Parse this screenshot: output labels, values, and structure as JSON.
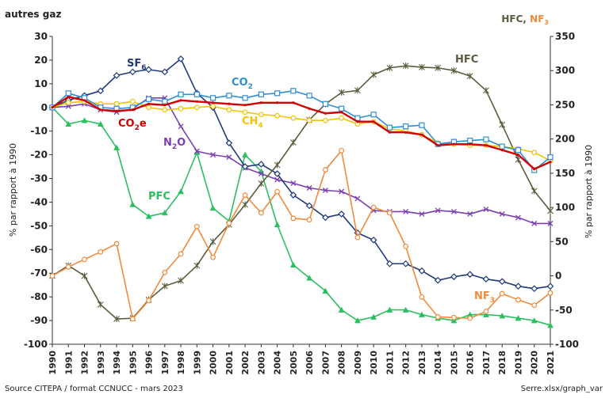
{
  "chart_data": {
    "type": "line",
    "title_left": "autres gaz",
    "title_right_hfc": "HFC, ",
    "title_right_nf3": "NF",
    "title_right_nf3_sub": "3",
    "ylabel_left": "% par rapport à 1990",
    "ylabel_right": "% par rapport à 1990",
    "ylim_left": [
      -100,
      30
    ],
    "ylim_right": [
      -100,
      350
    ],
    "yticks_left": [
      30,
      20,
      10,
      0,
      -10,
      -20,
      -30,
      -40,
      -50,
      -60,
      -70,
      -80,
      -90,
      -100
    ],
    "yticks_right": [
      350,
      300,
      250,
      200,
      150,
      100,
      50,
      0,
      -50,
      -100
    ],
    "grid": false,
    "x": [
      "1990",
      "1991",
      "1992",
      "1993",
      "1994",
      "1995",
      "1996",
      "1997",
      "1998",
      "1999",
      "2000",
      "2001",
      "2002",
      "2003",
      "2004",
      "2005",
      "2006",
      "2007",
      "2008",
      "2009",
      "2010",
      "2011",
      "2012",
      "2013",
      "2014",
      "2015",
      "2016",
      "2017",
      "2018",
      "2019",
      "2020",
      "2021"
    ],
    "series": [
      {
        "name": "SF6",
        "label": "SF",
        "label_sub": "6",
        "axis": "left",
        "color": "#1f3a7a",
        "marker": "diamond",
        "values": [
          0,
          3,
          5,
          7,
          13.5,
          15,
          16,
          15,
          20.5,
          6,
          0,
          -15,
          -25,
          -24,
          -28,
          -37,
          -41.5,
          -46.5,
          -45,
          -53,
          -56,
          -66,
          -66,
          -69,
          -73,
          -71.5,
          -70.5,
          -72.5,
          -73.5,
          -75.5,
          -76.5,
          -75.5
        ]
      },
      {
        "name": "CO2",
        "label": "CO",
        "label_sub": "2",
        "axis": "left",
        "color": "#2e8fd1",
        "marker": "square",
        "values": [
          0,
          6,
          4,
          0,
          -0.5,
          0,
          3.5,
          2.5,
          5.5,
          5.5,
          4,
          5,
          4,
          5.5,
          6,
          7,
          5,
          1.5,
          -0.5,
          -4.5,
          -3,
          -8.5,
          -8,
          -7.5,
          -15.5,
          -14.5,
          -14,
          -13.5,
          -16.5,
          -18,
          -26.5,
          -21
        ]
      },
      {
        "name": "CH4",
        "label": "CH",
        "label_sub": "4",
        "axis": "left",
        "color": "#f2c200",
        "marker": "circle",
        "values": [
          0,
          2,
          2.5,
          1.5,
          1.5,
          2.5,
          0,
          -1,
          -0.5,
          0,
          0.5,
          -1,
          -2,
          -3,
          -3.5,
          -4.5,
          -5.5,
          -5.5,
          -4.5,
          -7,
          -6,
          -9,
          -10,
          -11.5,
          -15,
          -15.5,
          -16,
          -16,
          -16.5,
          -17.5,
          -19,
          -22.5
        ]
      },
      {
        "name": "CO2e",
        "label": "CO",
        "label_sub": "2",
        "label_tail": "e",
        "axis": "left",
        "color": "#d10000",
        "marker": "line",
        "values": [
          0,
          4.5,
          3,
          -1,
          -1.5,
          -1,
          1.5,
          1,
          3,
          2.5,
          2,
          1.5,
          1,
          2,
          2,
          2,
          -0.5,
          -2.5,
          -2,
          -6,
          -6,
          -10.5,
          -10.5,
          -11.5,
          -16,
          -15.5,
          -15.5,
          -16,
          -18,
          -20,
          -26,
          -23
        ]
      },
      {
        "name": "N2O",
        "label": "N",
        "label_sub": "2",
        "label_tail": "O",
        "axis": "left",
        "color": "#7b3fb0",
        "marker": "x",
        "values": [
          0,
          0.5,
          1.5,
          -1,
          -2,
          -0.5,
          4,
          4,
          -8,
          -18.5,
          -20,
          -21,
          -25.5,
          -28,
          -30.5,
          -32,
          -34,
          -35,
          -35.5,
          -38.5,
          -43.5,
          -44,
          -44,
          -45,
          -43.5,
          -44,
          -45,
          -43,
          -45,
          -46.5,
          -49,
          -49
        ]
      },
      {
        "name": "PFC",
        "label": "PFC",
        "axis": "left",
        "color": "#2bbf60",
        "marker": "triangle",
        "values": [
          0,
          -7,
          -5.5,
          -7,
          -17,
          -41,
          -46,
          -44.5,
          -35.5,
          -19,
          -42.5,
          -48,
          -20,
          -27,
          -49.5,
          -66.5,
          -72,
          -77.5,
          -85.5,
          -90,
          -88.5,
          -85.5,
          -85.5,
          -87.5,
          -89,
          -90,
          -87.5,
          -87.5,
          -88,
          -89,
          -90,
          -92
        ]
      },
      {
        "name": "HFC",
        "label": "HFC",
        "axis": "right",
        "color": "#5c5c3d",
        "marker": "star",
        "values": [
          0,
          15,
          0,
          -42,
          -63,
          -62,
          -35,
          -15,
          -7,
          15,
          50,
          75,
          104,
          135,
          162,
          195,
          228,
          251,
          268,
          271,
          294,
          304,
          307,
          305,
          304,
          300,
          292,
          271,
          221,
          170,
          124,
          95
        ]
      },
      {
        "name": "NF3",
        "label": "NF",
        "label_sub": "3",
        "axis": "right",
        "color": "#f08a3a",
        "marker": "circle",
        "values": [
          0,
          13,
          24,
          35,
          47,
          -63,
          -36,
          5,
          32,
          72,
          27,
          77,
          118,
          92,
          123,
          84,
          82,
          155,
          183,
          56,
          100,
          92,
          43,
          -31,
          -60,
          -61,
          -62,
          -52,
          -26,
          -35,
          -43,
          -25
        ]
      }
    ]
  },
  "footer": {
    "source": "Source CITEPA / format CCNUCC - mars 2023",
    "file": "Serre.xlsx/graph_var"
  }
}
